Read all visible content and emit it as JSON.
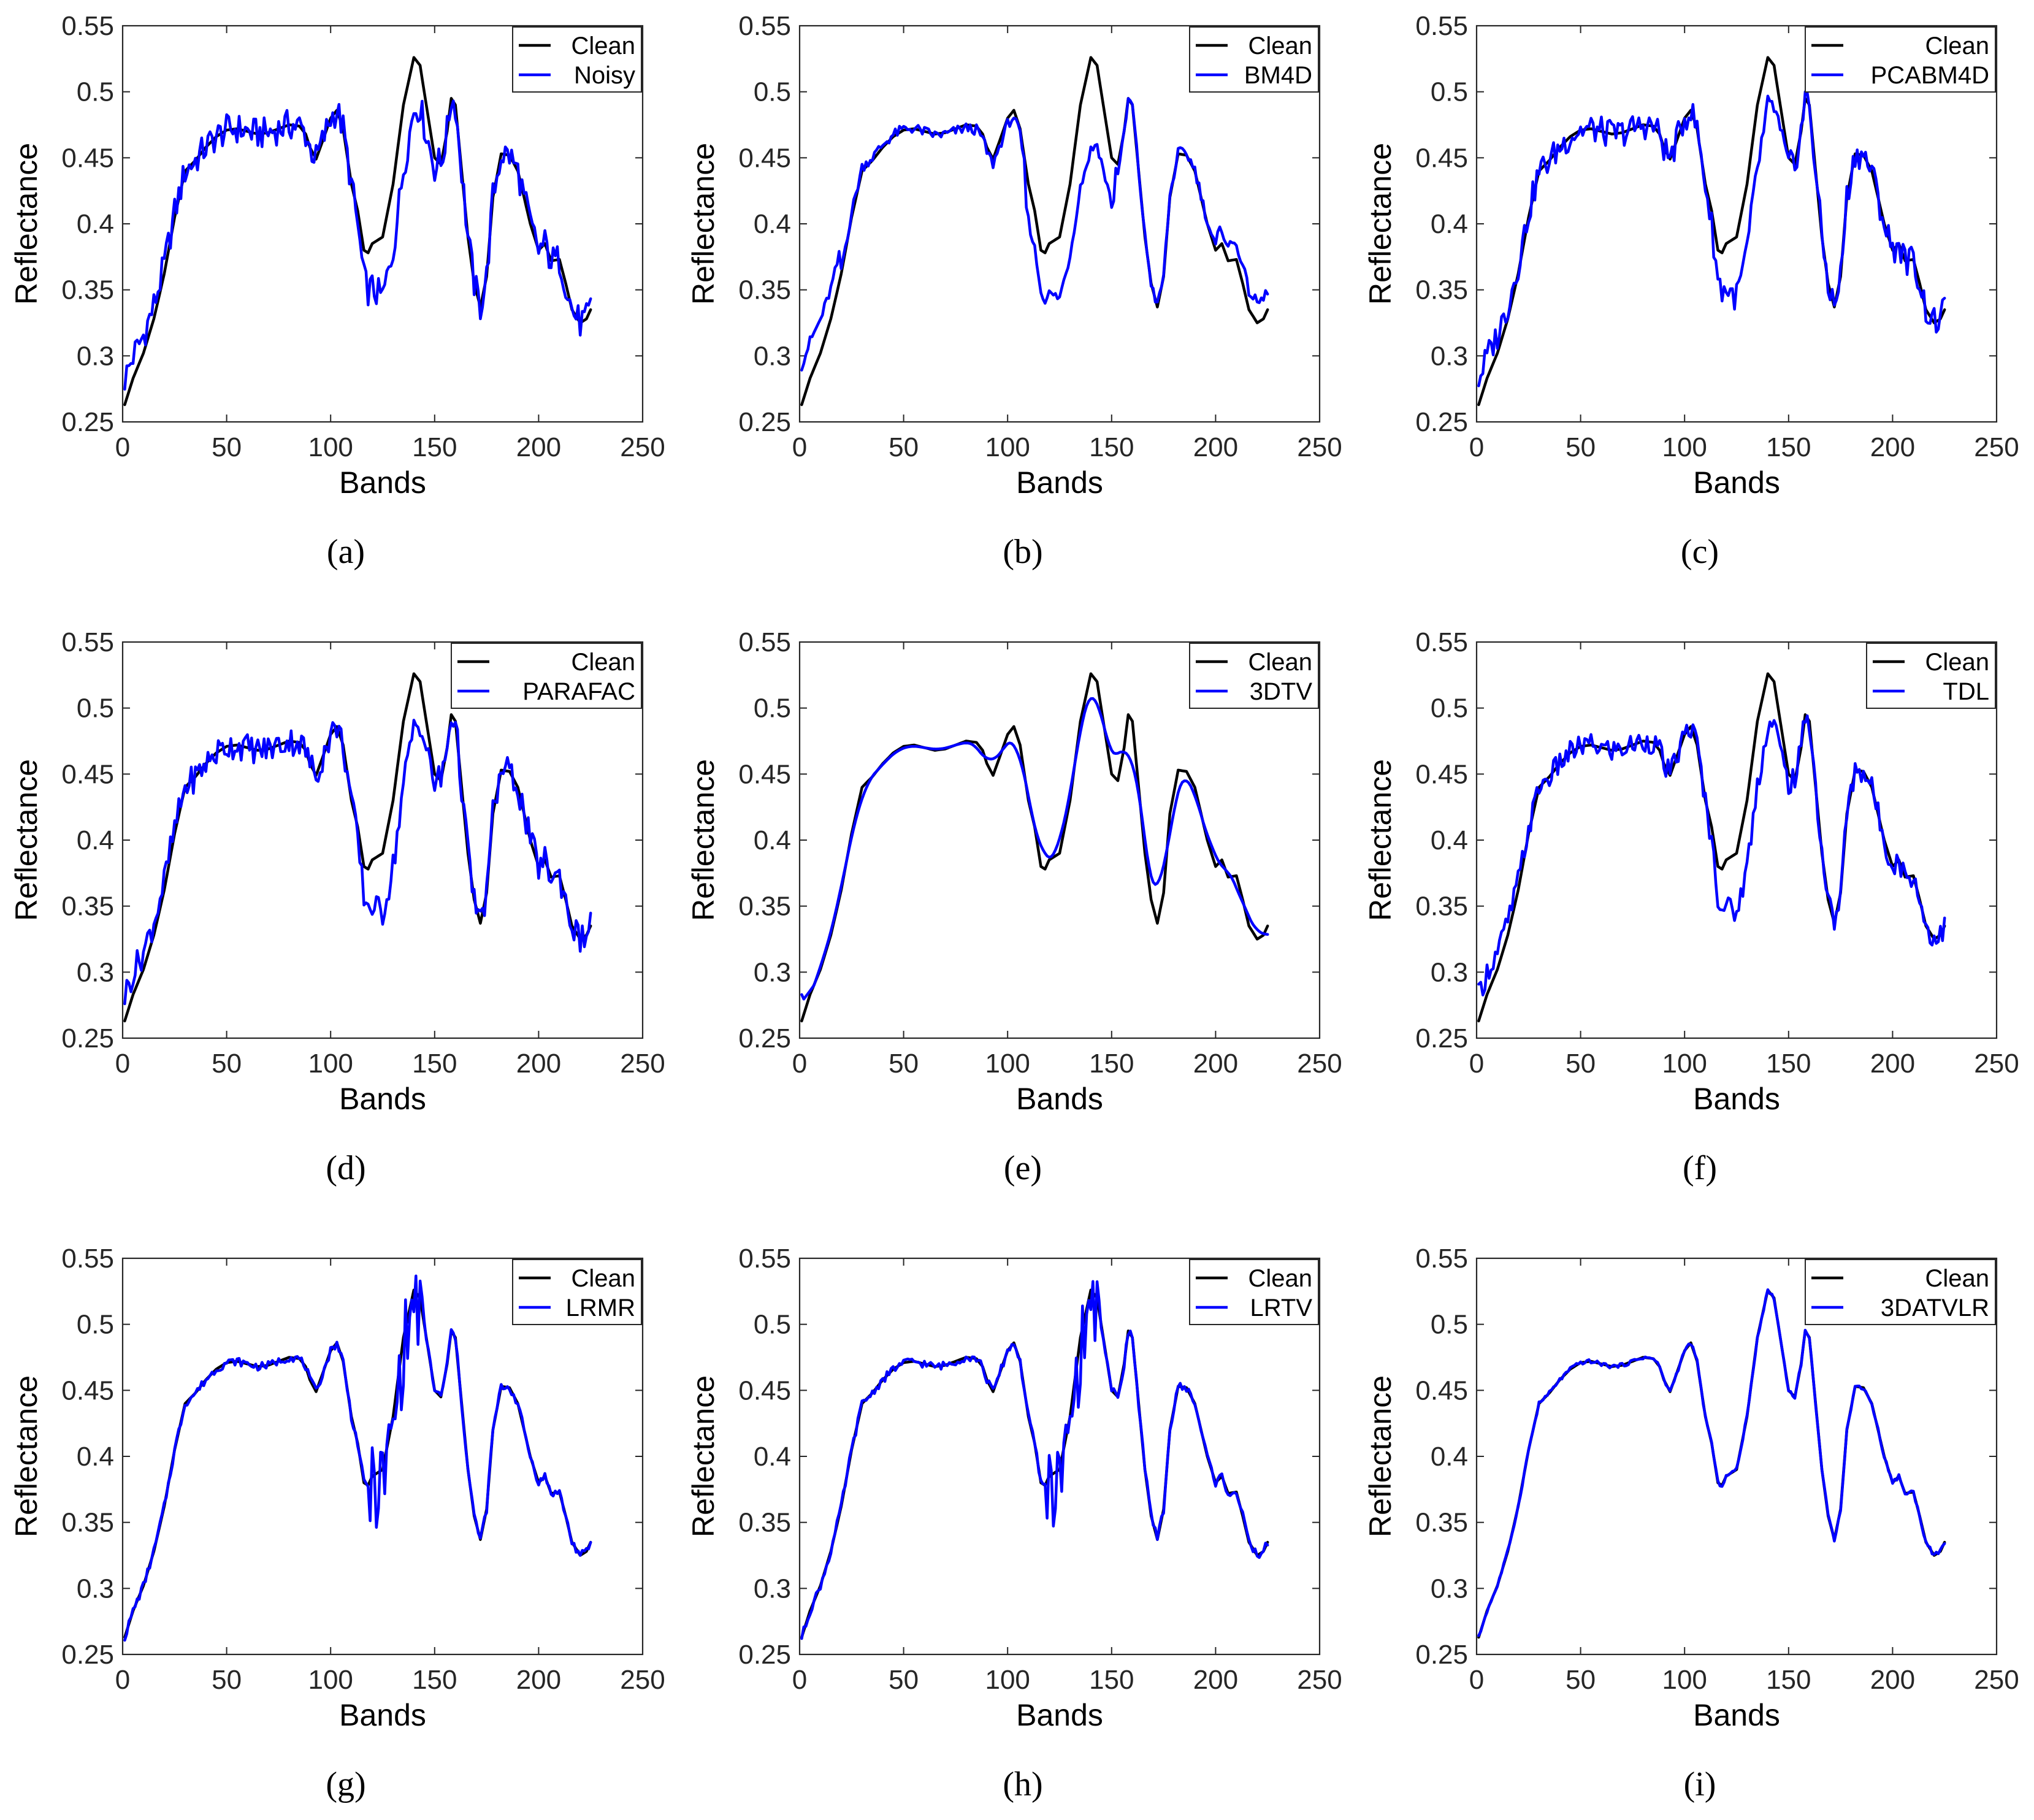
{
  "figure": {
    "ylabel": "Reflectance",
    "xlabel": "Bands",
    "x_ticks": [
      "0",
      "50",
      "100",
      "150",
      "200",
      "250"
    ],
    "y_ticks": [
      "0.25",
      "0.3",
      "0.35",
      "0.4",
      "0.45",
      "0.5",
      "0.55"
    ]
  },
  "colors": {
    "clean": "#000000",
    "method": "#0000ff"
  },
  "chart_data": [
    {
      "type": "line",
      "panel": "a",
      "caption": "(a)",
      "label": "a",
      "title": "",
      "xlabel": "Bands",
      "ylabel": "Reflectance",
      "xlim": [
        0,
        250
      ],
      "ylim": [
        0.25,
        0.55
      ],
      "legend": [
        "Clean",
        "Noisy"
      ],
      "legend_position": "top-right",
      "method_name": "Noisy",
      "noise": 0.012,
      "bias": [],
      "smooth": false
    },
    {
      "type": "line",
      "panel": "b",
      "caption": "(b)",
      "label": "b",
      "title": "",
      "xlabel": "Bands",
      "ylabel": "Reflectance",
      "xlim": [
        0,
        250
      ],
      "ylim": [
        0.25,
        0.55
      ],
      "legend": [
        "Clean",
        "BM4D"
      ],
      "legend_position": "top-right",
      "method_name": "BM4D",
      "noise": 0.004,
      "bias": [
        [
          1,
          0.03
        ],
        [
          115,
          -0.03
        ],
        [
          140,
          -0.07
        ],
        [
          160,
          0.0
        ],
        [
          220,
          0.015
        ]
      ],
      "smooth": false
    },
    {
      "type": "line",
      "panel": "c",
      "caption": "(c)",
      "label": "c",
      "title": "",
      "xlabel": "Bands",
      "ylabel": "Reflectance",
      "xlabel_tick": "",
      "xlim": [
        0,
        250
      ],
      "ylim": [
        0.25,
        0.55
      ],
      "legend": [
        "Clean",
        "PCABM4D"
      ],
      "legend_position": "top-right",
      "method_name": "PCABM4D",
      "noise": 0.011,
      "bias": [],
      "smooth": false
    },
    {
      "type": "line",
      "panel": "d",
      "caption": "(d)",
      "label": "d",
      "title": "",
      "xlabel": "Bands",
      "ylabel": "Reflectance",
      "xlim": [
        0,
        250
      ],
      "ylim": [
        0.25,
        0.55
      ],
      "legend": [
        "Clean",
        "PARAFAC"
      ],
      "legend_position": "top-right",
      "method_name": "PARAFAC",
      "noise": 0.011,
      "bias": [],
      "smooth": false
    },
    {
      "type": "line",
      "panel": "e",
      "caption": "(e)",
      "label": "e",
      "title": "",
      "xlabel": "Bands",
      "ylabel": "Reflectance",
      "xlim": [
        0,
        250
      ],
      "ylim": [
        0.25,
        0.55
      ],
      "legend": [
        "Clean",
        "3DTV"
      ],
      "legend_position": "top-right",
      "method_name": "3DTV",
      "noise": 0.0,
      "bias": [],
      "smooth": true
    },
    {
      "type": "line",
      "panel": "f",
      "caption": "(f)",
      "label": "f",
      "title": "",
      "xlabel": "Bands",
      "ylabel": "Reflectance",
      "xlim": [
        0,
        250
      ],
      "ylim": [
        0.25,
        0.55
      ],
      "legend": [
        "Clean",
        "TDL"
      ],
      "legend_position": "top-right",
      "method_name": "TDL",
      "noise": 0.009,
      "bias": [],
      "smooth": false
    },
    {
      "type": "line",
      "panel": "g",
      "caption": "(g)",
      "label": "g",
      "title": "",
      "xlabel": "Bands",
      "ylabel": "Reflectance",
      "xlim": [
        0,
        250
      ],
      "ylim": [
        0.25,
        0.55
      ],
      "legend": [
        "Clean",
        "LRMR"
      ],
      "legend_position": "top-right",
      "method_name": "LRMR",
      "noise": 0.003,
      "bias": [],
      "smooth": false
    },
    {
      "type": "line",
      "panel": "h",
      "caption": "(h)",
      "label": "h",
      "title": "",
      "xlabel": "Bands",
      "ylabel": "Reflectance",
      "xlim": [
        0,
        250
      ],
      "ylim": [
        0.25,
        0.55
      ],
      "legend": [
        "Clean",
        "LRTV"
      ],
      "legend_position": "top-right",
      "method_name": "LRTV",
      "noise": 0.003,
      "bias": [],
      "smooth": false
    },
    {
      "type": "line",
      "panel": "i",
      "caption": "(i)",
      "label": "i",
      "title": "",
      "xlabel": "Bands",
      "ylabel": "Reflectance",
      "xlim": [
        0,
        250
      ],
      "ylim": [
        0.25,
        0.55
      ],
      "legend": [
        "Clean",
        "3DATVLR"
      ],
      "legend_position": "top-right",
      "method_name": "3DATVLR",
      "noise": 0.0015,
      "bias": [],
      "smooth": false
    }
  ],
  "clean_series": {
    "x": [
      1,
      5,
      10,
      15,
      20,
      25,
      30,
      35,
      40,
      45,
      50,
      55,
      60,
      65,
      70,
      75,
      80,
      85,
      88,
      90,
      93,
      96,
      100,
      103,
      106,
      110,
      113,
      116,
      118,
      120,
      125,
      130,
      135,
      140,
      143,
      146,
      148,
      150,
      153,
      156,
      158,
      160,
      163,
      166,
      169,
      172,
      175,
      178,
      182,
      186,
      190,
      193,
      196,
      200,
      203,
      206,
      210,
      213,
      216,
      220,
      223,
      225
    ],
    "y": [
      0.263,
      0.283,
      0.302,
      0.328,
      0.362,
      0.405,
      0.44,
      0.448,
      0.458,
      0.466,
      0.471,
      0.472,
      0.47,
      0.468,
      0.469,
      0.472,
      0.475,
      0.474,
      0.468,
      0.458,
      0.449,
      0.462,
      0.48,
      0.486,
      0.472,
      0.43,
      0.41,
      0.38,
      0.378,
      0.385,
      0.39,
      0.43,
      0.49,
      0.526,
      0.52,
      0.49,
      0.47,
      0.45,
      0.445,
      0.47,
      0.495,
      0.49,
      0.44,
      0.39,
      0.355,
      0.337,
      0.36,
      0.42,
      0.453,
      0.452,
      0.44,
      0.42,
      0.4,
      0.38,
      0.385,
      0.372,
      0.373,
      0.355,
      0.335,
      0.325,
      0.328,
      0.335
    ]
  },
  "method_series_description": "Recovered spectral curves for each method at the same bands as clean_series; rendered in blue."
}
